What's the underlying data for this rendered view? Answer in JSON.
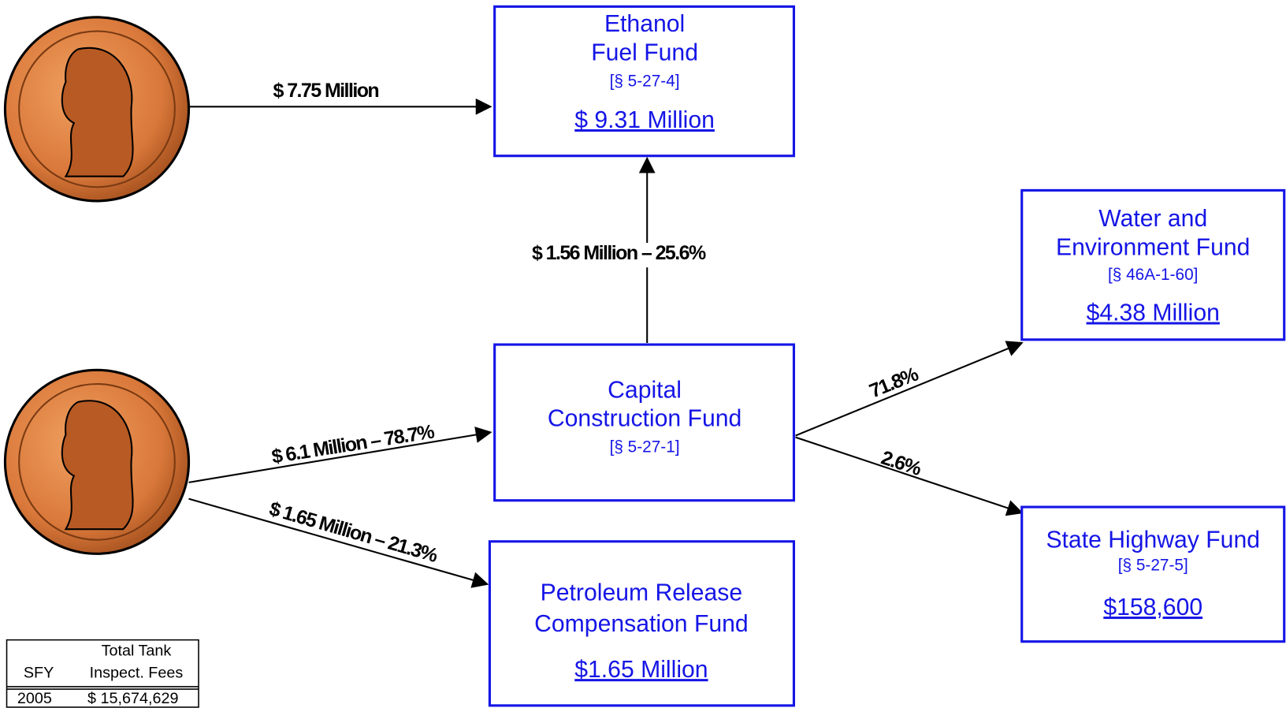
{
  "nodes": [
    {
      "title": [
        "Ethanol",
        "Fuel Fund"
      ],
      "citation": "[§ 5-27-4]",
      "amount": "$ 9.31 Million"
    },
    {
      "title": [
        "Water and",
        "Environment Fund"
      ],
      "citation": "[§ 46A-1-60]",
      "amount": "$4.38 Million"
    },
    {
      "title": [
        "Capital",
        "Construction Fund"
      ],
      "citation": "[§ 5-27-1]"
    },
    {
      "title": [
        "State Highway Fund"
      ],
      "citation": "[§ 5-27-5]",
      "amount": "$158,600"
    },
    {
      "title": [
        "Petroleum Release",
        "Compensation Fund"
      ],
      "amount": "$1.65 Million"
    }
  ],
  "edges": [
    {
      "label": "$ 7.75 Million"
    },
    {
      "label": "$ 1.56 Million – 25.6%"
    },
    {
      "label": "$ 6.1 Million – 78.7%"
    },
    {
      "label": "$ 1.65 Million – 21.3%"
    },
    {
      "label": "71.8%"
    },
    {
      "label": "2.6%"
    }
  ],
  "table": {
    "header": [
      [
        "SFY"
      ],
      [
        "Total Tank",
        "Inspect. Fees"
      ]
    ],
    "rows": [
      [
        "2005",
        "$ 15,674,629"
      ]
    ]
  }
}
